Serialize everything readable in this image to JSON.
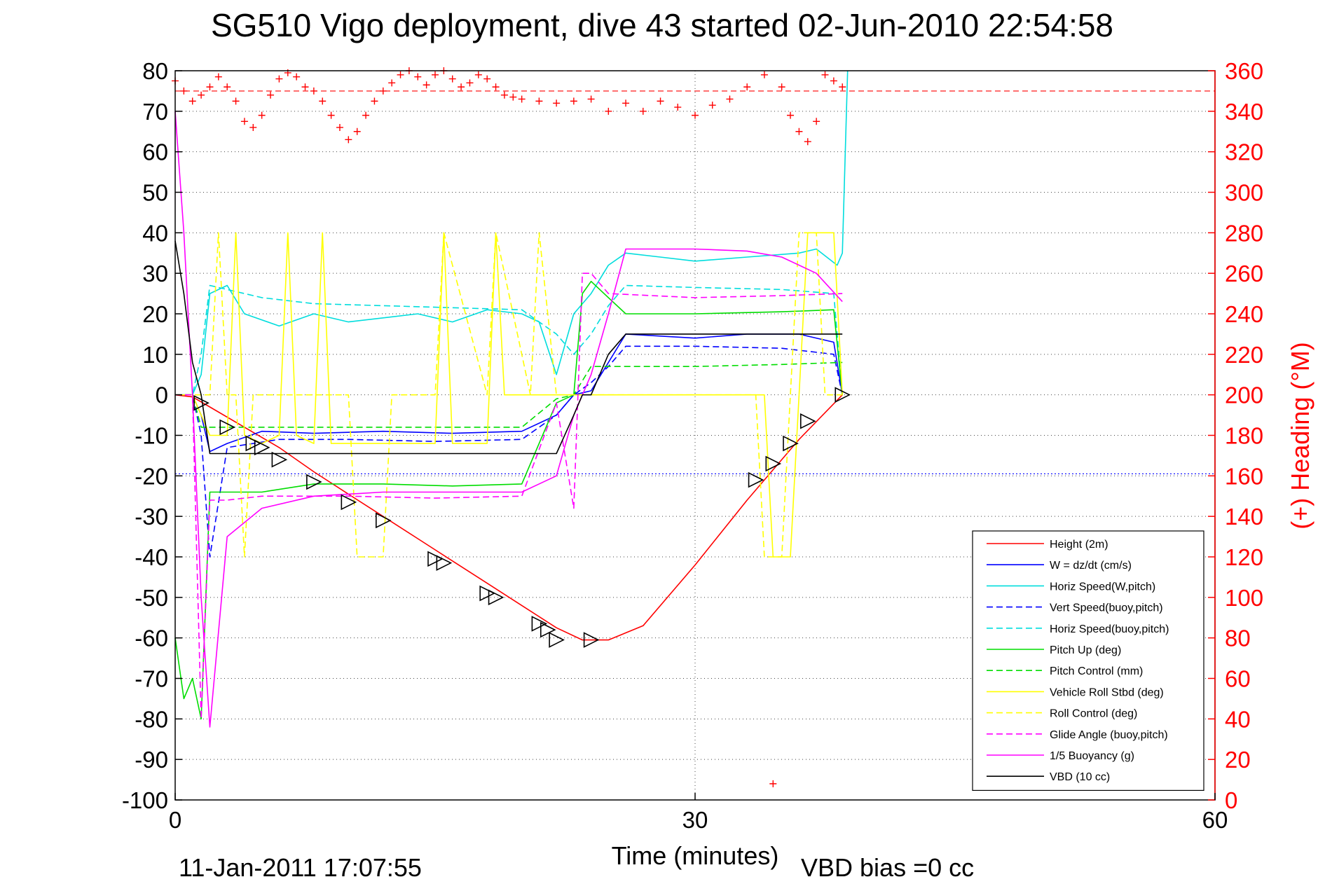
{
  "chart_data": {
    "type": "line",
    "title": "SG510 Vigo deployment, dive 43 started 02-Jun-2010 22:54:58",
    "xlabel": "Time (minutes)",
    "ylabel_right": "(+) Heading (°M)",
    "xlim": [
      0,
      60
    ],
    "ylim": [
      -100,
      80
    ],
    "ylim_right": [
      0,
      360
    ],
    "x_ticks": [
      "0",
      "30",
      "60"
    ],
    "y_ticks": [
      "80",
      "70",
      "60",
      "50",
      "40",
      "30",
      "20",
      "10",
      "0",
      "-10",
      "-20",
      "-30",
      "-40",
      "-50",
      "-60",
      "-70",
      "-80",
      "-90",
      "-100"
    ],
    "y_ticks_right": [
      "360",
      "340",
      "320",
      "300",
      "280",
      "260",
      "240",
      "220",
      "200",
      "180",
      "160",
      "140",
      "120",
      "100",
      "80",
      "60",
      "40",
      "20",
      "0"
    ],
    "grid": true,
    "legend_position": "bottom-right",
    "footer_timestamp": "11-Jan-2011 17:07:55",
    "footer_vbd_bias": "VBD bias =0 cc",
    "reference_lines": [
      {
        "axis": "right",
        "value": 350,
        "color": "#ff0000",
        "style": "dashed"
      },
      {
        "axis": "left",
        "value": -19.5,
        "color": "#0000ff",
        "style": "dotted"
      }
    ],
    "series": [
      {
        "name": "Height (2m)",
        "color": "#ff0000",
        "style": "solid",
        "x": [
          0,
          1,
          2,
          4,
          6,
          8,
          10,
          12,
          14,
          16,
          18,
          20,
          22,
          23.5,
          25,
          27,
          30,
          33,
          36,
          38.5
        ],
        "y": [
          0,
          -0.5,
          -3,
          -8,
          -13,
          -19,
          -24.5,
          -30,
          -35.5,
          -41,
          -46.5,
          -52,
          -57.5,
          -60.5,
          -60.5,
          -57,
          -42,
          -26,
          -11,
          0
        ]
      },
      {
        "name": "W = dz/dt (cm/s)",
        "color": "#0000ff",
        "style": "solid",
        "x": [
          0,
          1,
          1.5,
          2,
          3,
          5,
          8,
          12,
          16,
          20,
          22,
          23,
          24,
          25,
          26,
          28,
          30,
          33,
          36,
          38,
          38.5
        ],
        "y": [
          0,
          0,
          -5,
          -14,
          -12,
          -9,
          -9.5,
          -9,
          -9.5,
          -9,
          -5,
          0,
          1,
          8,
          15,
          14.5,
          14,
          15,
          15,
          13,
          0
        ]
      },
      {
        "name": "Horiz Speed(W,pitch)",
        "color": "#00dddd",
        "style": "solid",
        "x": [
          0,
          1,
          1.5,
          2,
          3,
          4,
          6,
          8,
          10,
          12,
          14,
          16,
          18,
          20,
          21,
          22,
          23,
          24,
          25,
          26,
          28,
          30,
          33,
          36,
          37,
          38.2,
          38.5,
          38.8
        ],
        "y": [
          0,
          0,
          5,
          25,
          27,
          20,
          17,
          20,
          18,
          19,
          20,
          18,
          21,
          20,
          18,
          5,
          20,
          25,
          32,
          35,
          34,
          33,
          34,
          35,
          36,
          32,
          35,
          80
        ]
      },
      {
        "name": "Vert Speed(buoy,pitch)",
        "color": "#0000ff",
        "style": "dashed",
        "x": [
          0,
          1,
          1.5,
          2,
          3,
          6,
          10,
          15,
          20,
          22,
          23,
          24,
          25,
          26,
          30,
          35,
          38,
          38.5
        ],
        "y": [
          0,
          0,
          -10,
          -40,
          -13,
          -11,
          -11,
          -11.5,
          -11,
          -5,
          0,
          3,
          7,
          12,
          12,
          11.5,
          10,
          0
        ]
      },
      {
        "name": "Horiz Speed(buoy,pitch)",
        "color": "#00dddd",
        "style": "dashed",
        "x": [
          0,
          1,
          1.5,
          2,
          3,
          5,
          8,
          12,
          16,
          20,
          22,
          23,
          24,
          25,
          26,
          30,
          35,
          38,
          38.5
        ],
        "y": [
          0,
          0,
          10,
          27,
          26,
          24,
          22.5,
          22,
          21.5,
          21,
          15,
          10,
          15,
          22,
          27,
          26.5,
          26,
          25,
          0
        ]
      },
      {
        "name": "Pitch Up (deg)",
        "color": "#00dd00",
        "style": "solid",
        "x": [
          0,
          0.5,
          1,
          1.5,
          2,
          3,
          5,
          8,
          12,
          16,
          20,
          22,
          23,
          23.5,
          24,
          25,
          26,
          30,
          35,
          38,
          38.5
        ],
        "y": [
          -60,
          -75,
          -70,
          -80,
          -24,
          -24,
          -24,
          -22,
          -22,
          -22.5,
          -22,
          -2,
          0,
          25,
          28,
          24,
          20,
          20,
          20.5,
          21,
          0
        ]
      },
      {
        "name": "Pitch Control (mm)",
        "color": "#00dd00",
        "style": "dashed",
        "x": [
          0,
          1,
          1.5,
          2,
          3,
          10,
          20,
          22,
          23,
          24,
          25,
          30,
          35,
          38.5
        ],
        "y": [
          0,
          0,
          -8,
          -8,
          -8,
          -8,
          -8,
          -1,
          0,
          7,
          7,
          7,
          7.5,
          8
        ]
      },
      {
        "name": "Vehicle Roll Stbd (deg)",
        "color": "#ffff00",
        "style": "solid",
        "x": [
          0,
          1,
          2,
          3,
          3.5,
          4,
          5,
          6,
          6.5,
          7,
          8,
          8.5,
          9,
          12,
          15,
          15.5,
          16,
          18,
          18.5,
          19,
          21,
          22,
          23,
          24,
          24.5,
          25,
          30,
          33,
          34,
          34.5,
          35.5,
          36,
          36.5,
          38,
          38.5
        ],
        "y": [
          0,
          0,
          -10,
          -10,
          40,
          -10,
          -12,
          -10,
          40,
          -10,
          -12,
          40,
          -12,
          -12,
          -12,
          40,
          -12,
          -12,
          40,
          0,
          0,
          0,
          0,
          0,
          0,
          0,
          0,
          0,
          0,
          -40,
          -40,
          0,
          40,
          40,
          0
        ]
      },
      {
        "name": "Roll Control (deg)",
        "color": "#ffff00",
        "style": "dashed",
        "x": [
          0,
          1,
          2,
          2.5,
          3,
          3.5,
          4,
          4.5,
          5,
          10,
          10.5,
          12,
          12.5,
          15,
          15.5,
          18,
          18.5,
          20.5,
          21,
          22,
          23,
          24,
          30,
          33.5,
          34,
          35,
          35.5,
          36,
          37,
          37.5,
          38.5
        ],
        "y": [
          0,
          0,
          0,
          40,
          0,
          0,
          -40,
          0,
          0,
          0,
          -40,
          -40,
          0,
          0,
          40,
          0,
          40,
          0,
          40,
          0,
          0,
          0,
          0,
          0,
          -40,
          -40,
          0,
          40,
          40,
          0,
          0
        ]
      },
      {
        "name": "Glide Angle (buoy,pitch)",
        "color": "#ff00ff",
        "style": "dashed",
        "x": [
          0,
          1,
          1.5,
          2,
          3,
          5,
          10,
          15,
          20,
          22,
          23,
          23.5,
          24,
          25,
          30,
          35,
          38.5
        ],
        "y": [
          0,
          0,
          -80,
          -26,
          -26,
          -25,
          -25,
          -25.5,
          -25,
          -2,
          -28,
          30,
          30,
          25,
          24,
          24.5,
          25
        ]
      },
      {
        "name": "1/5 Buoyancy (g)",
        "color": "#ff00ff",
        "style": "solid",
        "x": [
          0,
          0.5,
          1,
          1.5,
          2,
          3,
          5,
          8,
          12,
          16,
          20,
          22,
          23,
          24,
          25,
          26,
          30,
          33,
          35,
          37,
          38.5
        ],
        "y": [
          70,
          40,
          0,
          -50,
          -82,
          -35,
          -28,
          -25,
          -24,
          -24,
          -24,
          -20,
          -5,
          5,
          20,
          36,
          36,
          35.5,
          34,
          30,
          23
        ]
      },
      {
        "name": "VBD (10 cc)",
        "color": "#000000",
        "style": "solid",
        "x": [
          0,
          0.5,
          1,
          1.5,
          2,
          22,
          23,
          23.5,
          24,
          25,
          26,
          38.5
        ],
        "y": [
          38,
          25,
          8,
          0,
          -14.5,
          -14.5,
          -5,
          0,
          0,
          10,
          15,
          15
        ]
      }
    ],
    "heading_series": {
      "name": "Heading",
      "color": "#ff0000",
      "marker": "+",
      "axis": "right",
      "x": [
        0,
        0.5,
        1,
        1.5,
        2,
        2.5,
        3,
        3.5,
        4,
        4.5,
        5,
        5.5,
        6,
        6.5,
        7,
        7.5,
        8,
        8.5,
        9,
        9.5,
        10,
        10.5,
        11,
        11.5,
        12,
        12.5,
        13,
        13.5,
        14,
        14.5,
        15,
        15.5,
        16,
        16.5,
        17,
        17.5,
        18,
        18.5,
        19,
        19.5,
        20,
        21,
        22,
        23,
        24,
        25,
        26,
        27,
        28,
        29,
        30,
        31,
        32,
        33,
        34,
        34.5,
        35,
        35.5,
        36,
        36.5,
        37,
        37.5,
        38,
        38.5
      ],
      "y": [
        355,
        350,
        345,
        348,
        352,
        357,
        352,
        345,
        335,
        332,
        338,
        348,
        356,
        359,
        357,
        352,
        350,
        345,
        338,
        332,
        326,
        330,
        338,
        345,
        350,
        354,
        358,
        360,
        357,
        353,
        358,
        360,
        356,
        352,
        354,
        358,
        356,
        352,
        348,
        347,
        346,
        345,
        344,
        345,
        346,
        340,
        344,
        340,
        345,
        342,
        338,
        343,
        346,
        352,
        358,
        8,
        352,
        338,
        330,
        325,
        335,
        358,
        355,
        352
      ]
    },
    "triangle_markers": {
      "x": [
        1.5,
        3,
        4.5,
        5,
        6,
        8,
        10,
        12,
        15,
        15.5,
        18,
        18.5,
        21,
        21.5,
        22,
        24,
        33.5,
        34.5,
        35.5,
        36.5,
        38.5
      ],
      "y": [
        -2,
        -8,
        -12,
        -13,
        -16,
        -21.5,
        -26.5,
        -31,
        -40.5,
        -41.5,
        -49,
        -50,
        -56.5,
        -58,
        -60.5,
        -60.5,
        -21,
        -17,
        -12,
        -6.5,
        0
      ]
    }
  }
}
